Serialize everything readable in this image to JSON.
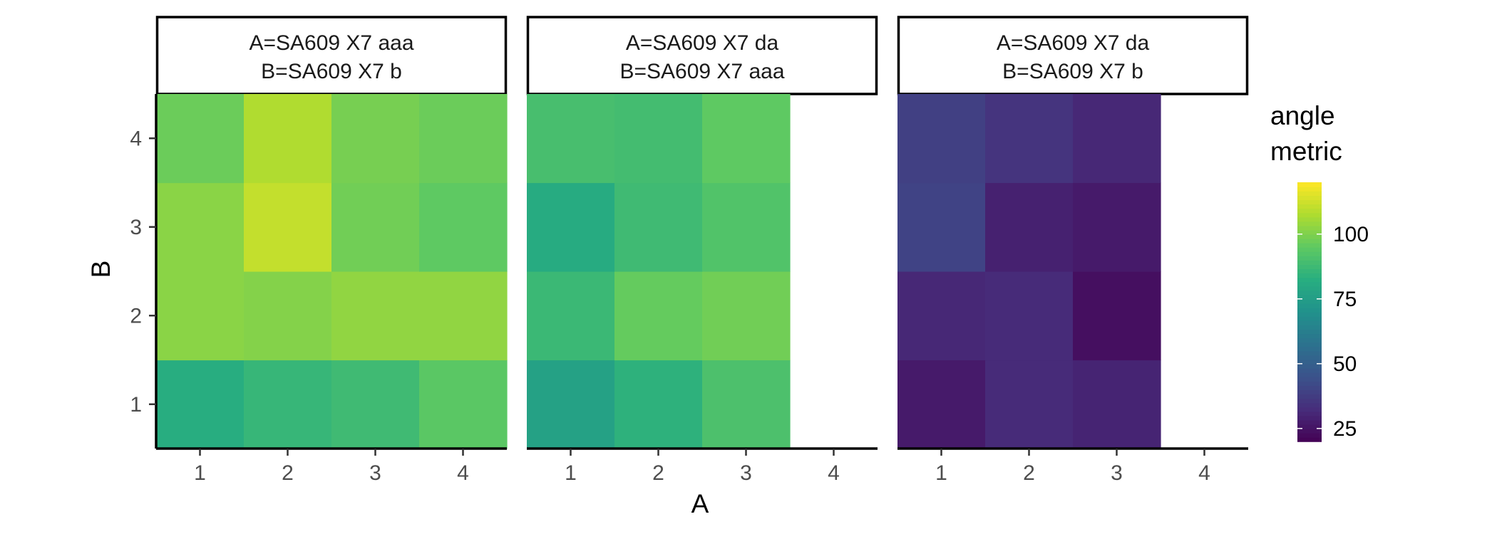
{
  "chart_data": {
    "type": "heatmap",
    "xlabel": "A",
    "ylabel": "B",
    "x_ticks": [
      "1",
      "2",
      "3",
      "4"
    ],
    "y_ticks": [
      "1",
      "2",
      "3",
      "4"
    ],
    "xlim": [
      0.5,
      4.5
    ],
    "ylim": [
      0.5,
      4.5
    ],
    "legend": {
      "title_lines": [
        "angle",
        "metric"
      ],
      "position": "right",
      "ticks": [
        25,
        50,
        75,
        100
      ],
      "range": [
        20,
        120
      ],
      "colormap": "viridis"
    },
    "panels": [
      {
        "strip_lines": [
          "A=SA609 X7 aaa",
          "B=SA609 X7 b"
        ],
        "cells": [
          {
            "a": 1,
            "b": 1,
            "value": 82
          },
          {
            "a": 2,
            "b": 1,
            "value": 86
          },
          {
            "a": 3,
            "b": 1,
            "value": 88
          },
          {
            "a": 4,
            "b": 1,
            "value": 94
          },
          {
            "a": 1,
            "b": 2,
            "value": 102
          },
          {
            "a": 2,
            "b": 2,
            "value": 101
          },
          {
            "a": 3,
            "b": 2,
            "value": 103
          },
          {
            "a": 4,
            "b": 2,
            "value": 103
          },
          {
            "a": 1,
            "b": 3,
            "value": 102
          },
          {
            "a": 2,
            "b": 3,
            "value": 111
          },
          {
            "a": 3,
            "b": 3,
            "value": 98
          },
          {
            "a": 4,
            "b": 3,
            "value": 95
          },
          {
            "a": 1,
            "b": 4,
            "value": 97
          },
          {
            "a": 2,
            "b": 4,
            "value": 108
          },
          {
            "a": 3,
            "b": 4,
            "value": 99
          },
          {
            "a": 4,
            "b": 4,
            "value": 97
          }
        ]
      },
      {
        "strip_lines": [
          "A=SA609 X7 da",
          "B=SA609 X7 aaa"
        ],
        "cells": [
          {
            "a": 1,
            "b": 1,
            "value": 77
          },
          {
            "a": 2,
            "b": 1,
            "value": 84
          },
          {
            "a": 3,
            "b": 1,
            "value": 91
          },
          {
            "a": 1,
            "b": 2,
            "value": 87
          },
          {
            "a": 2,
            "b": 2,
            "value": 96
          },
          {
            "a": 3,
            "b": 2,
            "value": 98
          },
          {
            "a": 1,
            "b": 3,
            "value": 81
          },
          {
            "a": 2,
            "b": 3,
            "value": 88
          },
          {
            "a": 3,
            "b": 3,
            "value": 92
          },
          {
            "a": 1,
            "b": 4,
            "value": 90
          },
          {
            "a": 2,
            "b": 4,
            "value": 89
          },
          {
            "a": 3,
            "b": 4,
            "value": 95
          }
        ]
      },
      {
        "strip_lines": [
          "A=SA609 X7 da",
          "B=SA609 X7 b"
        ],
        "cells": [
          {
            "a": 1,
            "b": 1,
            "value": 27
          },
          {
            "a": 2,
            "b": 1,
            "value": 32
          },
          {
            "a": 3,
            "b": 1,
            "value": 30
          },
          {
            "a": 1,
            "b": 2,
            "value": 31
          },
          {
            "a": 2,
            "b": 2,
            "value": 32
          },
          {
            "a": 3,
            "b": 2,
            "value": 24
          },
          {
            "a": 1,
            "b": 3,
            "value": 40
          },
          {
            "a": 2,
            "b": 3,
            "value": 29
          },
          {
            "a": 3,
            "b": 3,
            "value": 27
          },
          {
            "a": 1,
            "b": 4,
            "value": 39
          },
          {
            "a": 2,
            "b": 4,
            "value": 35
          },
          {
            "a": 3,
            "b": 4,
            "value": 31
          }
        ]
      }
    ]
  }
}
